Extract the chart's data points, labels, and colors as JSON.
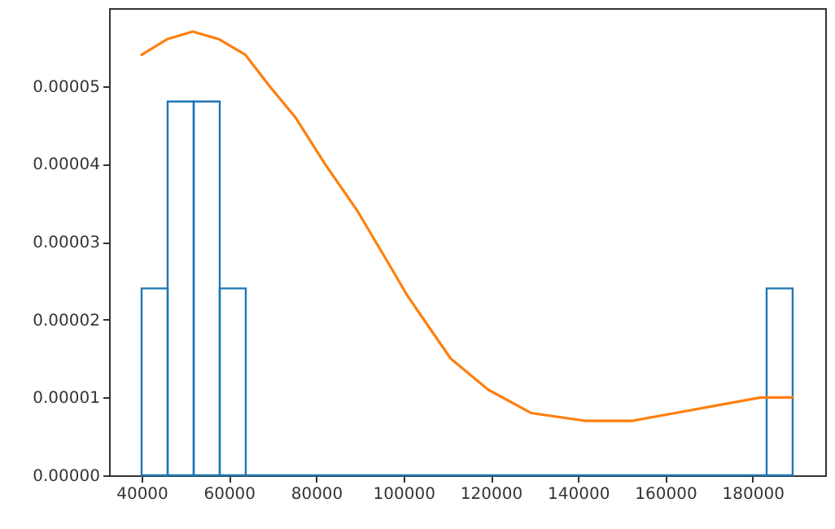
{
  "chart_data": {
    "type": "histogram",
    "bins": [
      40000,
      45967,
      51934,
      57901,
      63868,
      69835,
      75802,
      81769,
      87736,
      93703,
      99670,
      105637,
      111604,
      117571,
      123538,
      129505,
      135472,
      141439,
      147406,
      153373,
      159340,
      165307,
      171274,
      177241,
      183208,
      189175
    ],
    "series": [
      {
        "color": "#1f77b4",
        "values": [
          2.4e-05,
          4.8e-05,
          4.8e-05,
          2.4e-05,
          0,
          0,
          0,
          0,
          0,
          0,
          0,
          0,
          0,
          0,
          0,
          0,
          0,
          0,
          0,
          0,
          0,
          0,
          0,
          0,
          2.4e-05
        ]
      },
      {
        "type": "line",
        "color": "#ff7f0e",
        "x": [
          40000,
          45800,
          51700,
          57800,
          63800,
          69300,
          75200,
          82000,
          89400,
          96800,
          100980,
          110800,
          119400,
          129200,
          141500,
          152500,
          162300,
          172100,
          181900,
          189200
        ],
        "values": [
          5.4e-05,
          5.6e-05,
          5.7e-05,
          5.6e-05,
          5.4e-05,
          5e-05,
          4.6e-05,
          4e-05,
          3.4e-05,
          2.7e-05,
          2.3e-05,
          1.5e-05,
          1.1e-05,
          8e-06,
          7e-06,
          7e-06,
          8e-06,
          9e-06,
          1e-05,
          1e-05
        ]
      }
    ],
    "xlim": [
      32541,
      196639
    ],
    "xticks": [
      40000,
      60000,
      80000,
      100000,
      120000,
      140000,
      160000,
      180000
    ],
    "ylim": [
      0,
      6e-05
    ],
    "yticks": [
      {
        "value": 0,
        "label": "0.00000"
      },
      {
        "value": 1e-05,
        "label": "0.00001"
      },
      {
        "value": 2e-05,
        "label": "0.00002"
      },
      {
        "value": 3e-05,
        "label": "0.00003"
      },
      {
        "value": 4e-05,
        "label": "0.00004"
      },
      {
        "value": 5e-05,
        "label": "0.00005"
      }
    ],
    "grid": false
  }
}
